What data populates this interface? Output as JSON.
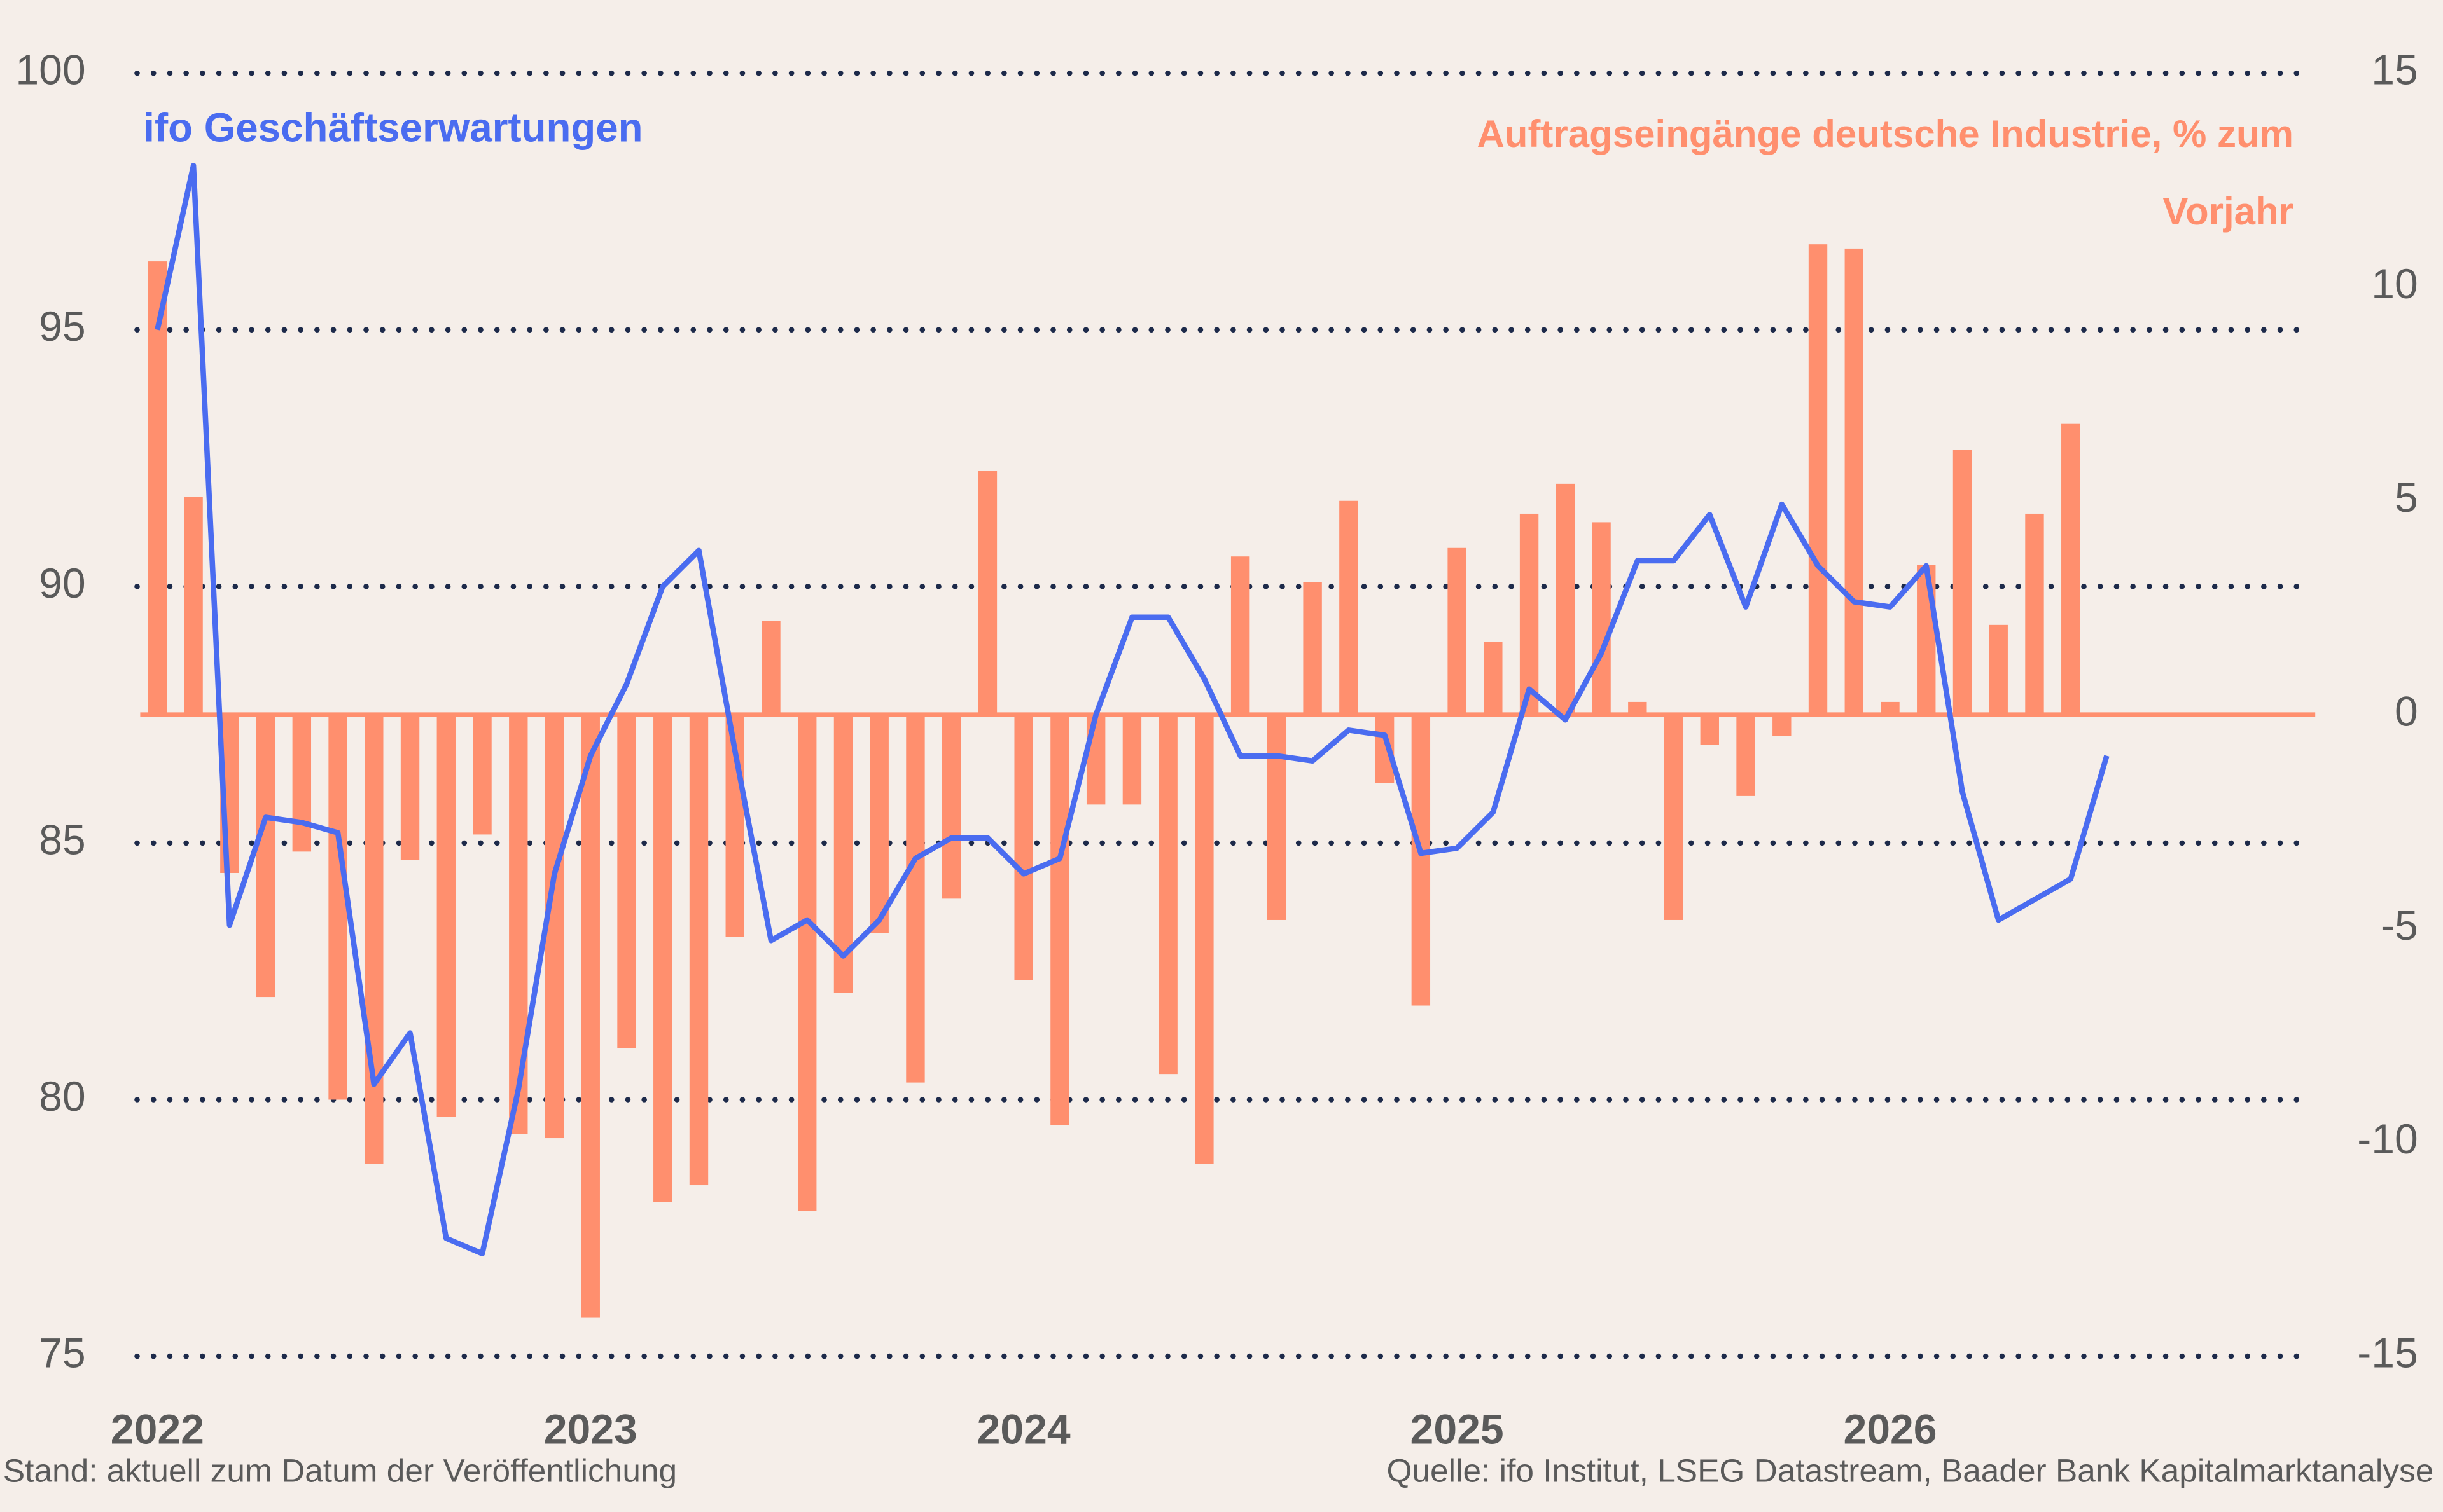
{
  "chart_data": {
    "type": "combo",
    "categories": [
      "2022",
      null,
      null,
      null,
      null,
      null,
      null,
      null,
      null,
      null,
      null,
      null,
      "2023",
      null,
      null,
      null,
      null,
      null,
      null,
      null,
      null,
      null,
      null,
      null,
      "2024",
      null,
      null,
      null,
      null,
      null,
      null,
      null,
      null,
      null,
      null,
      null,
      "2025",
      null,
      null,
      null,
      null,
      null,
      null,
      null,
      null,
      null,
      null,
      null,
      "2026",
      null,
      null,
      null,
      null,
      null,
      null
    ],
    "series": [
      {
        "name": "ifo Geschäftserwartungen",
        "type": "line",
        "color": "#4a6cf0",
        "axis": "y",
        "values": [
          95.0,
          98.2,
          83.4,
          85.5,
          85.4,
          85.2,
          80.3,
          81.3,
          77.3,
          77.0,
          80.2,
          84.4,
          86.7,
          88.1,
          90.0,
          90.7,
          86.8,
          83.1,
          83.5,
          82.8,
          83.5,
          84.7,
          85.1,
          85.1,
          84.4,
          84.7,
          87.5,
          89.4,
          89.4,
          88.2,
          86.7,
          86.7,
          86.6,
          87.2,
          87.1,
          84.8,
          84.9,
          85.6,
          88.0,
          87.4,
          88.7,
          90.5,
          90.5,
          91.4,
          89.6,
          91.6,
          90.4,
          89.7,
          89.6,
          90.4,
          86.0,
          83.5,
          83.9,
          84.3,
          86.7
        ]
      },
      {
        "name": "Auftragseingänge deutsche Industrie, % zum Vorjahr",
        "type": "bar",
        "color": "#ff8f6e",
        "axis": "y2",
        "values": [
          10.6,
          5.1,
          -3.7,
          -6.6,
          -3.2,
          -9.0,
          -10.5,
          -3.4,
          -9.4,
          -2.8,
          -9.8,
          -9.9,
          -14.1,
          -7.8,
          -11.4,
          -11.0,
          -5.2,
          2.2,
          -11.6,
          -6.5,
          -5.1,
          -8.6,
          -4.3,
          5.7,
          -6.2,
          -9.6,
          -2.1,
          -2.1,
          -8.4,
          -10.5,
          3.7,
          -4.8,
          3.1,
          5.0,
          -1.6,
          -6.8,
          3.9,
          1.7,
          4.7,
          5.4,
          4.5,
          0.3,
          -4.8,
          -0.7,
          -1.9,
          -0.5,
          11.0,
          10.9,
          0.3,
          3.5,
          6.2,
          2.1,
          4.7,
          6.8,
          null
        ]
      }
    ],
    "ylim": [
      75,
      100
    ],
    "yticks": [
      100,
      95,
      90,
      85,
      80,
      75
    ],
    "y2lim": [
      -15,
      15
    ],
    "y2ticks": [
      15,
      10,
      5,
      0,
      -5,
      -10,
      -15
    ],
    "grid": true,
    "note": "Stand: aktuell zum Datum der Veröffentlichung",
    "source": "Quelle: ifo Institut, LSEG Datastream, Baader Bank Kapitalmarktanalyse"
  }
}
